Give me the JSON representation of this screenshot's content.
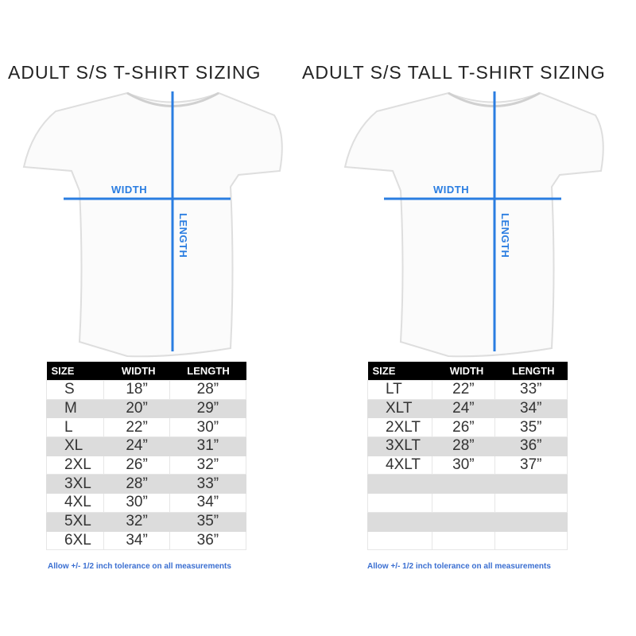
{
  "colors": {
    "accent": "#2a7de1",
    "header_bg": "#000000",
    "alt_row": "#dcdcdc"
  },
  "charts": [
    {
      "title": "ADULT S/S T-SHIRT SIZING",
      "width_label": "WIDTH",
      "length_label": "LENGTH",
      "headers": [
        "SIZE",
        "WIDTH",
        "LENGTH"
      ],
      "rows": [
        [
          "S",
          "18”",
          "28”"
        ],
        [
          "M",
          "20”",
          "29”"
        ],
        [
          "L",
          "22”",
          "30”"
        ],
        [
          "XL",
          "24”",
          "31”"
        ],
        [
          "2XL",
          "26”",
          "32”"
        ],
        [
          "3XL",
          "28”",
          "33”"
        ],
        [
          "4XL",
          "30”",
          "34”"
        ],
        [
          "5XL",
          "32”",
          "35”"
        ],
        [
          "6XL",
          "34”",
          "36”"
        ]
      ],
      "note": "Allow +/- 1/2 inch tolerance on all measurements"
    },
    {
      "title": "ADULT S/S TALL T-SHIRT SIZING",
      "width_label": "WIDTH",
      "length_label": "LENGTH",
      "headers": [
        "SIZE",
        "WIDTH",
        "LENGTH"
      ],
      "rows": [
        [
          "LT",
          "22”",
          "33”"
        ],
        [
          "XLT",
          "24”",
          "34”"
        ],
        [
          "2XLT",
          "26”",
          "35”"
        ],
        [
          "3XLT",
          "28”",
          "36”"
        ],
        [
          "4XLT",
          "30”",
          "37”"
        ],
        [
          "",
          "",
          ""
        ],
        [
          "",
          "",
          ""
        ],
        [
          "",
          "",
          ""
        ],
        [
          "",
          "",
          ""
        ]
      ],
      "note": "Allow +/- 1/2 inch tolerance on all measurements"
    }
  ]
}
